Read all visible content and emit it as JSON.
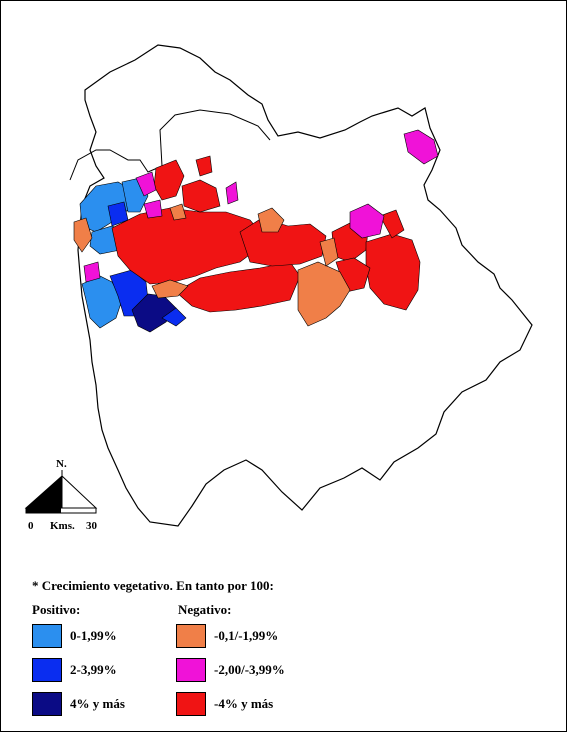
{
  "map": {
    "legend_title": "* Crecimiento vegetativo. En tanto por 100:",
    "positive": {
      "heading": "Positivo:",
      "classes": [
        {
          "label": "0-1,99%",
          "color": "#2b8fef"
        },
        {
          "label": "2-3,99%",
          "color": "#0a2df0"
        },
        {
          "label": "4% y más",
          "color": "#0b0b85"
        }
      ]
    },
    "negative": {
      "heading": "Negativo:",
      "classes": [
        {
          "label": "-0,1/-1,99%",
          "color": "#f07f48"
        },
        {
          "label": "-2,00/-3,99%",
          "color": "#f012d8"
        },
        {
          "label": "-4% y más",
          "color": "#f01414"
        }
      ]
    },
    "north_label": "N.",
    "scale": {
      "start": "0",
      "unit": "Kms.",
      "end": "30"
    }
  }
}
